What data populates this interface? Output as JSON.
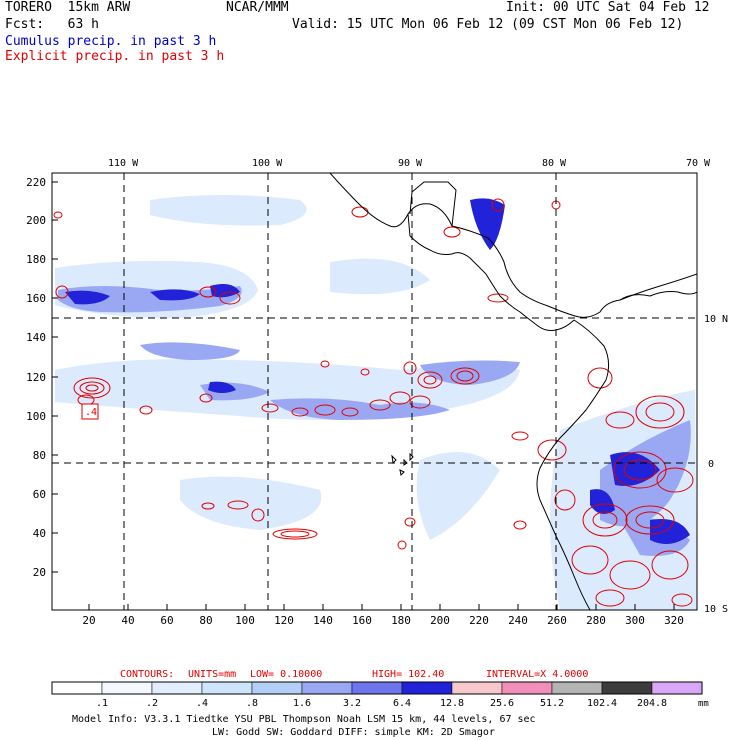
{
  "header": {
    "model": "TORERO  15km ARW",
    "org": "NCAR/MMM",
    "init": "Init: 00 UTC Sat 04 Feb 12",
    "fcst": "Fcst:   63 h",
    "valid": "Valid: 15 UTC Mon 06 Feb 12 (09 CST Mon 06 Feb 12)",
    "field1": "Cumulus precip. in past 3 h",
    "field2": "Explicit precip. in past 3 h"
  },
  "colors": {
    "cumulus": "#0000c8",
    "explicit": "#e00000"
  },
  "longitude_labels": [
    "110 W",
    "100 W",
    "90 W",
    "80 W",
    "70 W"
  ],
  "latitude_labels": [
    "10 N",
    "0",
    "10 S"
  ],
  "y_ticks": [
    "220",
    "200",
    "180",
    "160",
    "140",
    "120",
    "100",
    "80",
    "60",
    "40",
    "20"
  ],
  "x_ticks": [
    "20",
    "40",
    "60",
    "80",
    "100",
    "120",
    "140",
    "160",
    "180",
    "200",
    "220",
    "240",
    "260",
    "280",
    "300",
    "320"
  ],
  "map_marker": ".4",
  "contour_info": {
    "label": "CONTOURS:",
    "units": "UNITS=mm",
    "low": "LOW= 0.10000",
    "high": "HIGH=  102.40",
    "interval": "INTERVAL=X  4.0000"
  },
  "colorbar": {
    "levels": [
      ".1",
      ".2",
      ".4",
      ".8",
      "1.6",
      "3.2",
      "6.4",
      "12.8",
      "25.6",
      "51.2",
      "102.4",
      "204.8"
    ],
    "unit": "mm",
    "colors": [
      "#ffffff",
      "#f4f8ff",
      "#e2eefe",
      "#cde4fb",
      "#b3cff8",
      "#9aa8f4",
      "#6f73ec",
      "#2222d8",
      "#f6c8cc",
      "#f090b8",
      "#b4b4b4",
      "#3c3c3c",
      "#d8a8f8"
    ]
  },
  "footer": {
    "line1": "Model Info: V3.3.1    Tiedtke YSU PBL  Thompson    Noah LSM  15 km,   44 levels,   67 sec",
    "line2": "LW: Godd SW: Goddard DIFF: simple KM: 2D Smagor"
  }
}
